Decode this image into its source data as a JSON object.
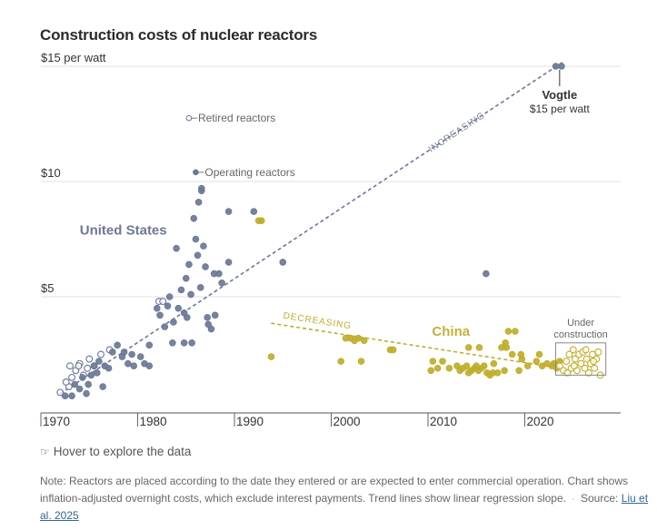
{
  "title": "Construction costs of nuclear reactors",
  "hover_hint": "Hover to explore the data",
  "hover_icon": "pointer-hand-icon",
  "note": {
    "text": "Note: Reactors are placed according to the date they entered or are expected to enter commercial operation. Chart shows inflation-adjusted overnight costs, which exclude interest payments. Trend lines show linear regression slope.",
    "source_label": "Source:",
    "source_link": "Liu et al. 2025"
  },
  "colors": {
    "us": "#6b7797",
    "china": "#bfae2a",
    "grid": "#e2e2e2",
    "axis": "#555555"
  },
  "chart_data": {
    "type": "scatter",
    "title": "Construction costs of nuclear reactors",
    "xlabel": "",
    "ylabel": "",
    "xlim": [
      1970,
      2028
    ],
    "ylim": [
      0,
      15
    ],
    "grid": true,
    "x_ticks": [
      {
        "value": 1970,
        "label": "1970"
      },
      {
        "value": 1980,
        "label": "1980"
      },
      {
        "value": 1990,
        "label": "1990"
      },
      {
        "value": 2000,
        "label": "2000"
      },
      {
        "value": 2010,
        "label": "2010"
      },
      {
        "value": 2020,
        "label": "2020"
      }
    ],
    "y_ticks": [
      {
        "value": 5,
        "label": "$5"
      },
      {
        "value": 10,
        "label": "$10"
      },
      {
        "value": 15,
        "label": "$15 per watt"
      }
    ],
    "legend": [
      {
        "label": "Retired reactors",
        "style": "hollow",
        "x": 1988.3,
        "y": 12.75
      },
      {
        "label": "Operating reactors",
        "style": "filled",
        "x": 1989.0,
        "y": 10.4
      }
    ],
    "annotations": {
      "us_label": {
        "text": "United States",
        "x": 1975.8,
        "y": 7.9
      },
      "china_label": {
        "text": "China",
        "x": 2012.2,
        "y": 3.5
      },
      "increasing": {
        "text": "INCREASING",
        "x": 2015.5,
        "y": 12.6
      },
      "decreasing": {
        "text": "DECREASING",
        "x": 1995.0,
        "y": 3.8
      },
      "vogtle_name": "Vogtle",
      "vogtle_value": "$15 per watt",
      "under_construction": [
        "Under",
        "construction"
      ],
      "under_construction_range": {
        "x": [
          2023.0,
          2028.0
        ],
        "y": [
          1.6,
          3.0
        ]
      }
    },
    "trendlines": [
      {
        "name": "United States",
        "label": "INCREASING",
        "x": [
          1972,
          2024
        ],
        "y": [
          0.8,
          15.2
        ]
      },
      {
        "name": "China",
        "label": "DECREASING",
        "x": [
          1993.8,
          2023
        ],
        "y": [
          3.85,
          1.95
        ]
      }
    ],
    "series": [
      {
        "name": "United States - Retired",
        "style": "hollow",
        "points": [
          [
            1972.0,
            0.85
          ],
          [
            1972.9,
            1.1
          ],
          [
            1973.2,
            1.5
          ],
          [
            1973.6,
            1.8
          ],
          [
            1974.0,
            2.1
          ],
          [
            1974.4,
            1.6
          ],
          [
            1974.8,
            1.9
          ],
          [
            1975.0,
            2.3
          ],
          [
            1975.5,
            2.0
          ],
          [
            1976.2,
            2.5
          ],
          [
            1977.1,
            2.7
          ],
          [
            1972.6,
            1.3
          ],
          [
            1973.9,
            2.0
          ],
          [
            1982.2,
            4.8
          ],
          [
            1982.6,
            4.8
          ],
          [
            1973.0,
            2.0
          ]
        ]
      },
      {
        "name": "United States - Operating",
        "style": "filled",
        "points": [
          [
            1972.5,
            0.7
          ],
          [
            1973.2,
            0.7
          ],
          [
            1973.5,
            1.2
          ],
          [
            1974.0,
            1.0
          ],
          [
            1974.3,
            1.5
          ],
          [
            1974.7,
            0.8
          ],
          [
            1974.9,
            1.2
          ],
          [
            1975.2,
            1.6
          ],
          [
            1975.5,
            2.0
          ],
          [
            1975.8,
            1.7
          ],
          [
            1976.0,
            2.2
          ],
          [
            1976.6,
            2.0
          ],
          [
            1977.0,
            1.9
          ],
          [
            1977.4,
            2.6
          ],
          [
            1977.9,
            2.9
          ],
          [
            1978.4,
            2.4
          ],
          [
            1979.0,
            2.1
          ],
          [
            1979.6,
            2.0
          ],
          [
            1980.3,
            2.4
          ],
          [
            1980.7,
            2.1
          ],
          [
            1981.2,
            2.0
          ],
          [
            1981.2,
            2.9
          ],
          [
            1976.4,
            1.1
          ],
          [
            1978.6,
            2.6
          ],
          [
            1979.4,
            2.5
          ],
          [
            1982.0,
            4.5
          ],
          [
            1982.3,
            4.2
          ],
          [
            1982.8,
            3.7
          ],
          [
            1983.1,
            4.6
          ],
          [
            1983.3,
            5.0
          ],
          [
            1983.6,
            3.0
          ],
          [
            1984.0,
            7.1
          ],
          [
            1984.2,
            4.5
          ],
          [
            1984.5,
            5.3
          ],
          [
            1984.8,
            3.0
          ],
          [
            1985.0,
            5.8
          ],
          [
            1985.1,
            4.1
          ],
          [
            1985.3,
            6.4
          ],
          [
            1985.6,
            3.0
          ],
          [
            1985.8,
            8.4
          ],
          [
            1986.0,
            7.5
          ],
          [
            1986.3,
            9.1
          ],
          [
            1986.5,
            5.4
          ],
          [
            1986.6,
            9.6
          ],
          [
            1986.6,
            9.7
          ],
          [
            1986.8,
            7.2
          ],
          [
            1987.0,
            6.3
          ],
          [
            1987.2,
            4.1
          ],
          [
            1986.2,
            6.8
          ],
          [
            1983.7,
            3.9
          ],
          [
            1985.5,
            5.1
          ],
          [
            1987.3,
            3.8
          ],
          [
            1987.6,
            3.6
          ],
          [
            1987.9,
            6.0
          ],
          [
            1988.4,
            6.0
          ],
          [
            1988.7,
            5.6
          ],
          [
            1989.4,
            8.7
          ],
          [
            1989.4,
            6.5
          ],
          [
            1984.8,
            4.3
          ],
          [
            1988.0,
            4.2
          ],
          [
            1992.0,
            8.7
          ],
          [
            1995.0,
            6.5
          ],
          [
            2016.0,
            6.0
          ],
          [
            2023.2,
            15.0
          ],
          [
            2023.8,
            15.0
          ]
        ]
      },
      {
        "name": "China - Operating",
        "style": "filled",
        "points": [
          [
            1992.5,
            8.3
          ],
          [
            1992.8,
            8.3
          ],
          [
            1993.8,
            2.4
          ],
          [
            2001.5,
            3.2
          ],
          [
            2002.0,
            3.2
          ],
          [
            2002.4,
            3.1
          ],
          [
            2002.8,
            3.2
          ],
          [
            2003.4,
            3.1
          ],
          [
            2001.0,
            2.2
          ],
          [
            2003.1,
            2.2
          ],
          [
            2006.1,
            2.7
          ],
          [
            2006.4,
            2.7
          ],
          [
            2010.5,
            2.2
          ],
          [
            2011.0,
            1.9
          ],
          [
            2010.3,
            1.8
          ],
          [
            2011.5,
            2.2
          ],
          [
            2013.0,
            2.0
          ],
          [
            2013.3,
            1.8
          ],
          [
            2013.6,
            1.9
          ],
          [
            2014.0,
            2.0
          ],
          [
            2014.2,
            1.7
          ],
          [
            2014.5,
            1.8
          ],
          [
            2014.8,
            1.9
          ],
          [
            2015.0,
            2.0
          ],
          [
            2015.2,
            1.8
          ],
          [
            2015.5,
            1.9
          ],
          [
            2015.8,
            2.0
          ],
          [
            2016.1,
            1.7
          ],
          [
            2016.4,
            1.6
          ],
          [
            2016.7,
            1.7
          ],
          [
            2017.2,
            1.7
          ],
          [
            2017.9,
            1.8
          ],
          [
            2014.2,
            2.8
          ],
          [
            2015.3,
            2.8
          ],
          [
            2017.6,
            2.8
          ],
          [
            2018.0,
            3.0
          ],
          [
            2018.1,
            2.8
          ],
          [
            2018.3,
            3.5
          ],
          [
            2019.0,
            3.5
          ],
          [
            2018.7,
            2.5
          ],
          [
            2019.7,
            2.3
          ],
          [
            2020.3,
            2.0
          ],
          [
            2021.2,
            2.2
          ],
          [
            2021.5,
            2.5
          ],
          [
            2021.8,
            2.0
          ],
          [
            2022.8,
            2.0
          ],
          [
            2023.3,
            1.9
          ],
          [
            2023.0,
            2.1
          ],
          [
            2023.6,
            2.2
          ],
          [
            2012.2,
            1.9
          ],
          [
            2016.8,
            2.1
          ],
          [
            2019.4,
            1.8
          ],
          [
            2019.6,
            2.5
          ],
          [
            2022.3,
            2.1
          ]
        ]
      },
      {
        "name": "China - Under construction",
        "style": "hollow",
        "points": [
          [
            2023.6,
            2.0
          ],
          [
            2024.0,
            1.8
          ],
          [
            2024.3,
            2.2
          ],
          [
            2024.6,
            2.5
          ],
          [
            2024.8,
            1.9
          ],
          [
            2025.0,
            2.7
          ],
          [
            2025.2,
            2.3
          ],
          [
            2025.4,
            1.8
          ],
          [
            2025.6,
            2.5
          ],
          [
            2025.8,
            2.1
          ],
          [
            2026.0,
            2.6
          ],
          [
            2026.2,
            1.9
          ],
          [
            2026.4,
            2.3
          ],
          [
            2026.6,
            1.7
          ],
          [
            2026.8,
            2.1
          ],
          [
            2027.0,
            2.5
          ],
          [
            2027.2,
            1.9
          ],
          [
            2027.4,
            2.3
          ],
          [
            2027.6,
            2.6
          ],
          [
            2027.8,
            1.6
          ],
          [
            2024.4,
            1.7
          ],
          [
            2025.1,
            2.0
          ],
          [
            2026.3,
            2.7
          ],
          [
            2027.1,
            2.2
          ]
        ]
      }
    ]
  }
}
